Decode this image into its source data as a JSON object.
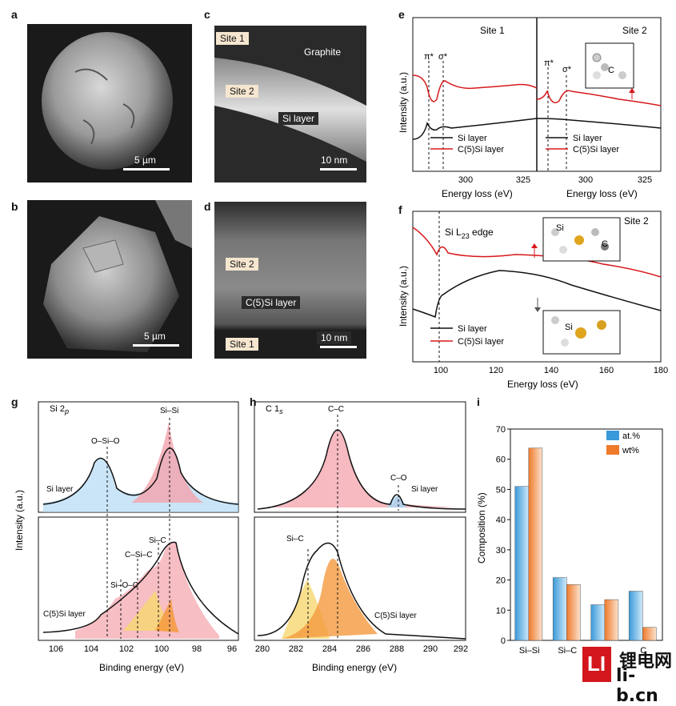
{
  "panels": {
    "a": {
      "label": "a",
      "scale": "5 µm"
    },
    "b": {
      "label": "b",
      "scale": "5 µm"
    },
    "c": {
      "label": "c",
      "scale": "10 nm",
      "site1": "Site 1",
      "site2": "Site 2",
      "graphite": "Graphite",
      "layer": "Si layer"
    },
    "d": {
      "label": "d",
      "scale": "10 nm",
      "site1": "Site 1",
      "site2": "Site 2",
      "layer": "C(5)Si layer"
    },
    "e": {
      "label": "e",
      "site1": "Site 1",
      "site2": "Site 2",
      "pi": "π*",
      "sigma": "σ*",
      "ylabel": "Intensity (a.u.)",
      "xlabel": "Energy loss (eV)",
      "inset_atom": "C"
    },
    "f": {
      "label": "f",
      "site2": "Site 2",
      "edge": "Si L",
      "edge_sub": "23",
      "edge_tail": " edge",
      "ylabel": "Intensity (a.u.)",
      "xlabel": "Energy loss (eV)",
      "inset_si1": "Si",
      "inset_c": "C",
      "inset_si2": "Si"
    },
    "g": {
      "label": "g",
      "core": "Si 2",
      "core_sub": "p",
      "ylabel": "Intensity (a.u.)",
      "xlabel": "Binding energy (eV)",
      "peaks": [
        "O–Si–O",
        "Si–Si",
        "Si–O–C",
        "C–Si–C",
        "Si–C"
      ],
      "top_tag": "Si layer",
      "bot_tag": "C(5)Si layer"
    },
    "h": {
      "label": "h",
      "core": "C 1",
      "core_sub": "s",
      "xlabel": "Binding energy (eV)",
      "peaks": [
        "C–C",
        "C–O",
        "Si–C"
      ],
      "top_tag": "Si layer",
      "bot_tag": "C(5)Si layer"
    },
    "i": {
      "label": "i",
      "ylabel": "Composition (%)"
    }
  },
  "legend": {
    "si": "Si layer",
    "c5si": "C(5)Si layer"
  },
  "watermark": {
    "box": "LI",
    "cn": "锂电网",
    "url": "li-b.cn"
  },
  "colors": {
    "red": "#d7191c",
    "black": "#111111",
    "blue": "#3a9ad9",
    "orange": "#ee7a2a"
  },
  "chart_data": [
    {
      "type": "line",
      "panel": "e",
      "x_ticks_site1": [
        300,
        325
      ],
      "x_ticks_site2": [
        300,
        325
      ],
      "series": [
        {
          "name": "Si layer"
        },
        {
          "name": "C(5)Si layer"
        }
      ]
    },
    {
      "type": "line",
      "panel": "f",
      "x_ticks": [
        100,
        120,
        140,
        160,
        180
      ],
      "xlim": [
        90,
        180
      ],
      "series": [
        {
          "name": "Si layer"
        },
        {
          "name": "C(5)Si layer"
        }
      ]
    },
    {
      "type": "line",
      "panel": "g",
      "x_ticks": [
        106,
        104,
        102,
        100,
        98,
        96
      ],
      "xlim": [
        107,
        96
      ]
    },
    {
      "type": "line",
      "panel": "h",
      "x_ticks": [
        280,
        282,
        284,
        286,
        288,
        290,
        292
      ],
      "xlim": [
        279.5,
        292
      ]
    },
    {
      "type": "bar",
      "panel": "i",
      "categories": [
        "Si–Si",
        "Si–C",
        "C",
        "C"
      ],
      "series": [
        {
          "name": "at.%",
          "values": [
            51,
            20.8,
            11.8,
            16.3
          ]
        },
        {
          "name": "wt%",
          "values": [
            63.7,
            18.5,
            13.5,
            4.3
          ]
        }
      ],
      "ylabel": "Composition (%)",
      "ylim": [
        0,
        70
      ],
      "y_ticks": [
        0,
        10,
        20,
        30,
        40,
        50,
        60,
        70
      ]
    }
  ]
}
